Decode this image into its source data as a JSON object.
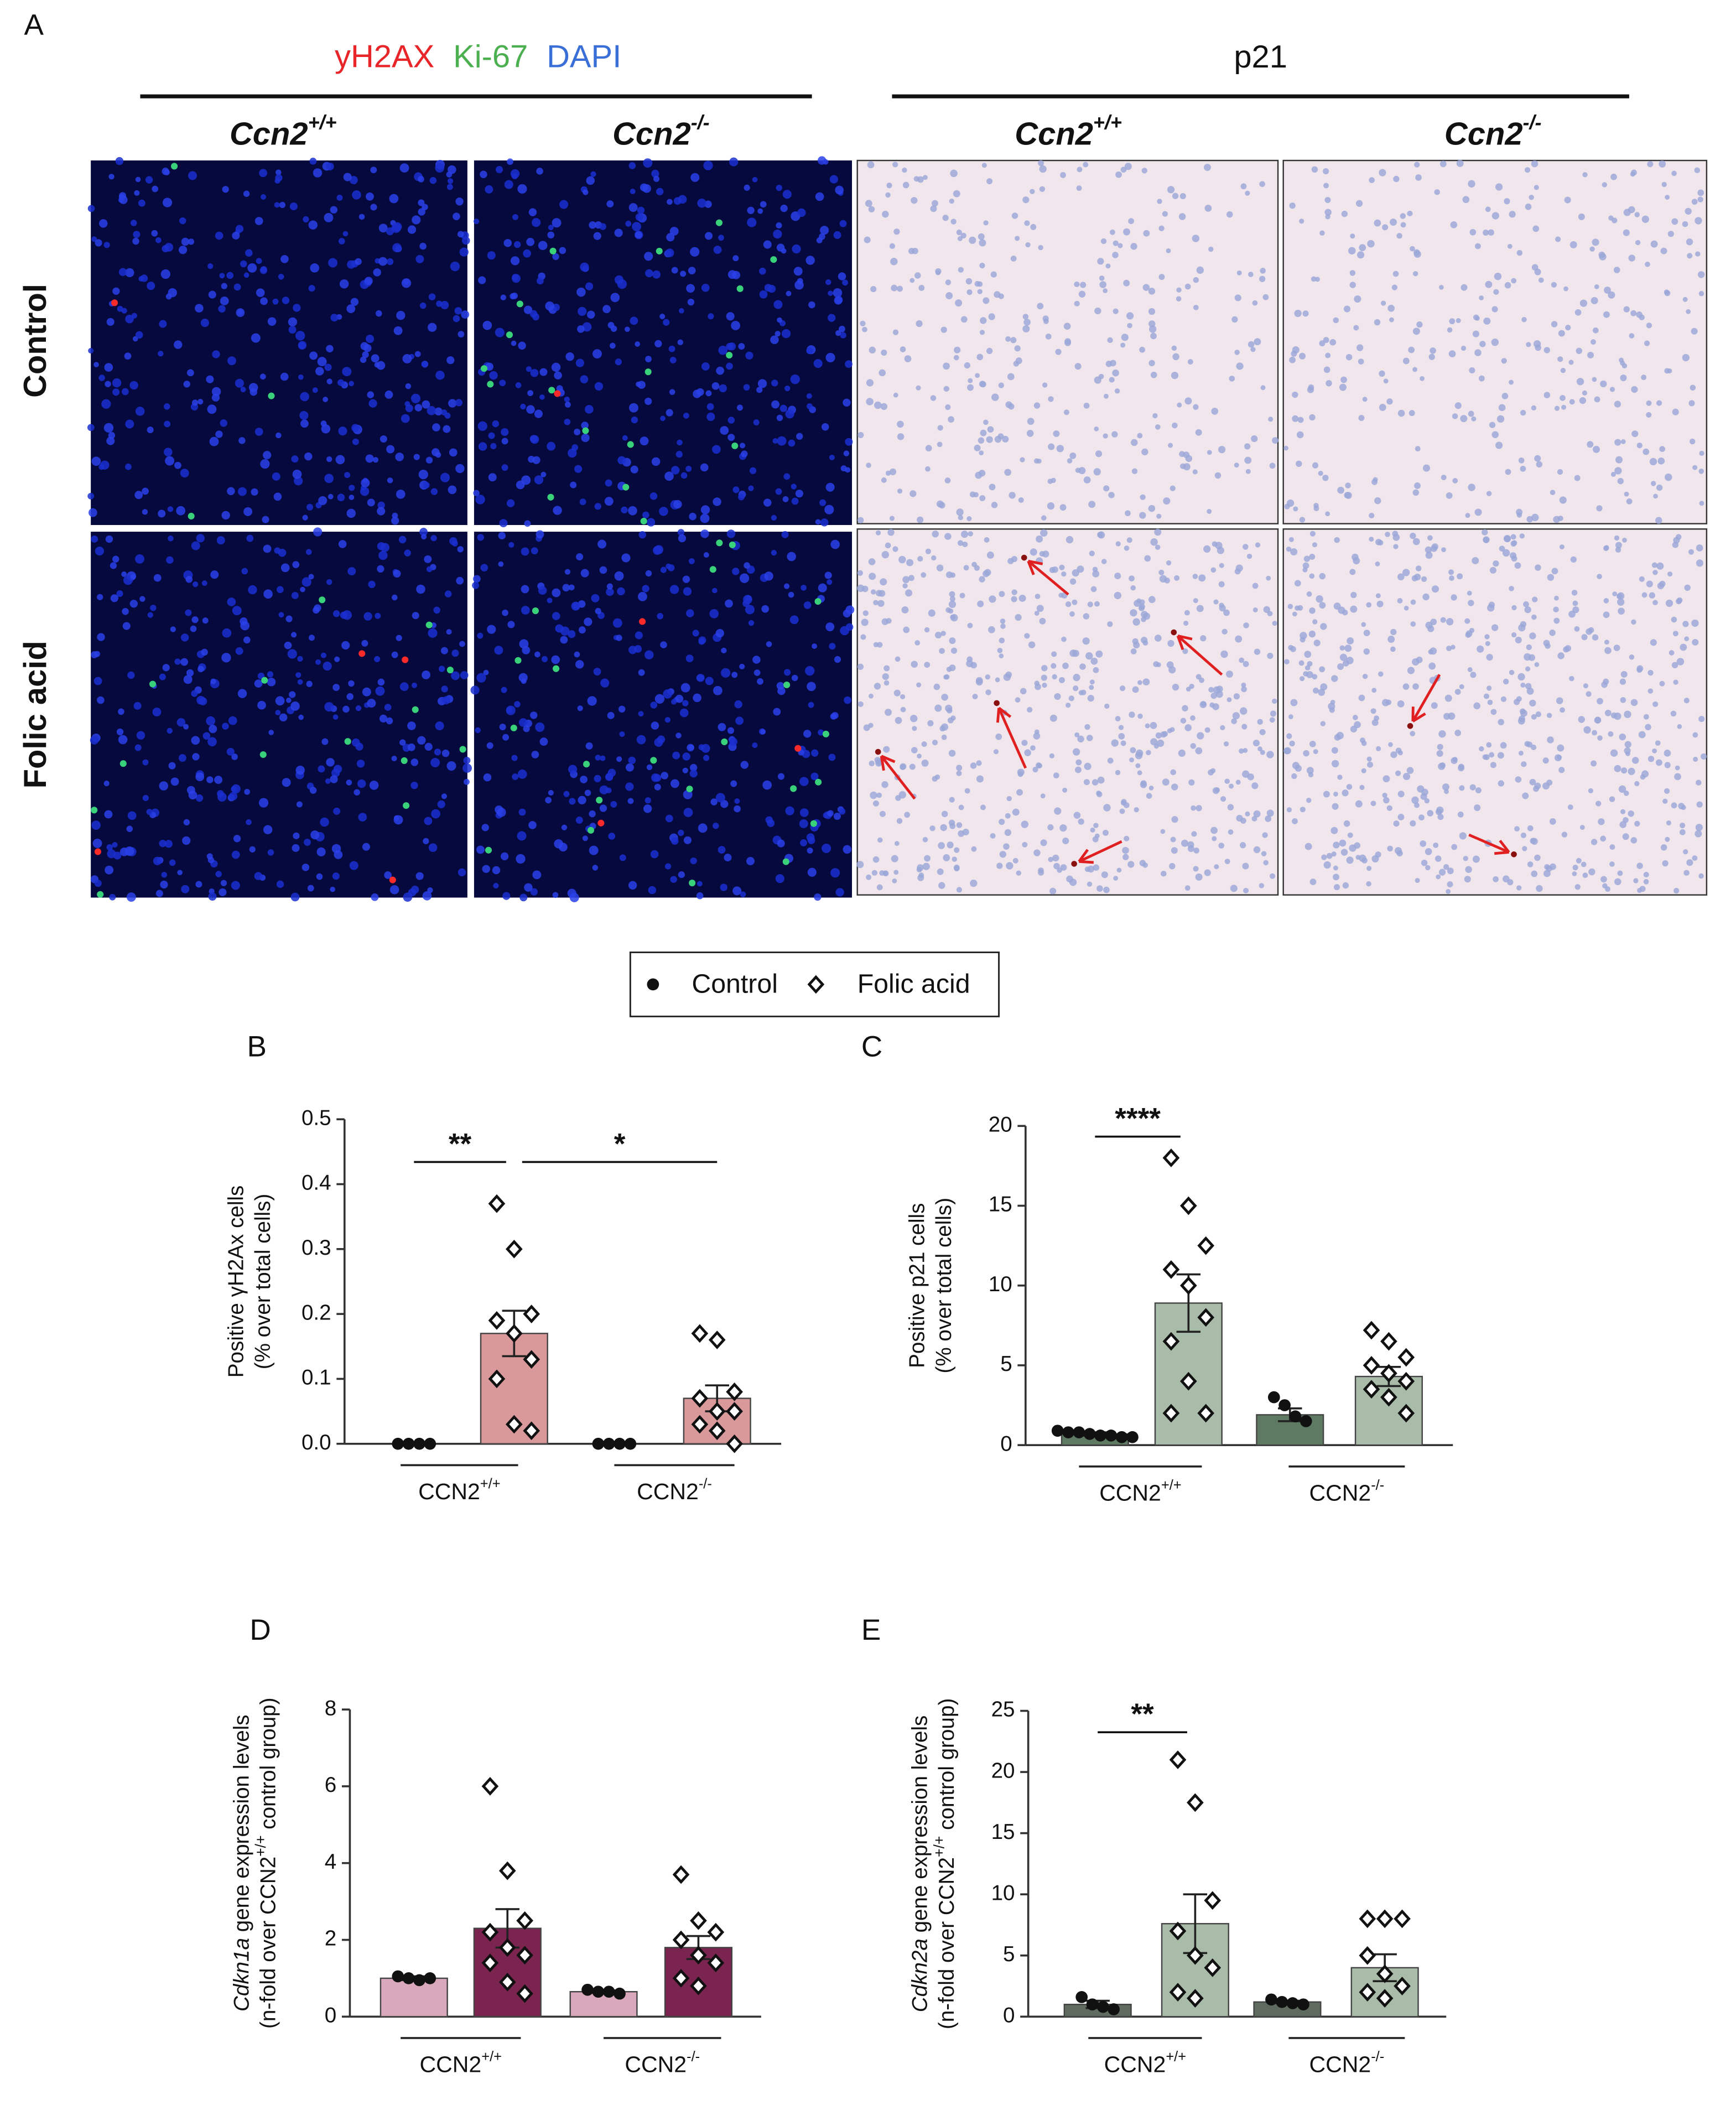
{
  "panel_a": {
    "panel": "A",
    "stains": [
      {
        "text": "yH2AX",
        "color": "#e8262a"
      },
      {
        "text": "Ki-67",
        "color": "#4caf50"
      },
      {
        "text": "DAPI",
        "color": "#3a6fd8"
      }
    ],
    "ihc_label": "p21",
    "columns": [
      {
        "base": "Ccn2",
        "sup": "+/+"
      },
      {
        "base": "Ccn2",
        "sup": "-/-"
      },
      {
        "base": "Ccn2",
        "sup": "+/+"
      },
      {
        "base": "Ccn2",
        "sup": "-/-"
      }
    ],
    "rows": [
      "Control",
      "Folic acid"
    ]
  },
  "legend": [
    {
      "name": "Control",
      "marker": "circle"
    },
    {
      "name": "Folic acid",
      "marker": "diamond"
    }
  ],
  "chart_data": [
    {
      "type": "bar",
      "panel": "B",
      "ylabel": [
        [
          {
            "text": "Positive γH2Ax cells"
          }
        ],
        [
          {
            "text": "(% over total cells)"
          }
        ]
      ],
      "ylim": [
        0,
        0.5
      ],
      "yticks": [
        {
          "value": 0,
          "label": "0.0"
        },
        0.1,
        0.2,
        0.3,
        0.4,
        0.5
      ],
      "categories": [
        {
          "base": "CCN2",
          "sup": "+/+"
        },
        {
          "base": "CCN2",
          "sup": "-/-"
        }
      ],
      "series": [
        {
          "marker": "circle",
          "color": "#d9999b",
          "values": [
            0,
            0
          ],
          "errors": [
            0,
            0
          ],
          "points": [
            [
              0,
              0,
              0,
              0
            ],
            [
              0,
              0,
              0,
              0
            ]
          ]
        },
        {
          "marker": "diamond",
          "color": "#d9999b",
          "values": [
            0.17,
            0.07
          ],
          "errors": [
            0.035,
            0.02
          ],
          "points": [
            [
              0.37,
              0.3,
              0.2,
              0.19,
              0.17,
              0.13,
              0.1,
              0.03,
              0.02
            ],
            [
              0.17,
              0.16,
              0.08,
              0.07,
              0.05,
              0.05,
              0.03,
              0.02,
              0.0
            ]
          ]
        }
      ],
      "significance": [
        {
          "label": "**",
          "bars": [
            [
              0,
              0
            ],
            [
              1,
              0
            ]
          ]
        },
        {
          "label": "*",
          "bars": [
            [
              1,
              0
            ],
            [
              1,
              1
            ]
          ]
        }
      ]
    },
    {
      "type": "bar",
      "panel": "C",
      "ylabel": [
        [
          {
            "text": "Positive p21 cells"
          }
        ],
        [
          {
            "text": "(% over total cells)"
          }
        ]
      ],
      "ylim": [
        0,
        20
      ],
      "yticks": [
        0,
        5,
        10,
        15,
        20
      ],
      "categories": [
        {
          "base": "CCN2",
          "sup": "+/+"
        },
        {
          "base": "CCN2",
          "sup": "-/-"
        }
      ],
      "series": [
        {
          "marker": "circle",
          "color": "#5f7a63",
          "values": [
            0.7,
            1.9
          ],
          "errors": [
            0.1,
            0.4
          ],
          "points": [
            [
              0.9,
              0.8,
              0.8,
              0.7,
              0.6,
              0.6,
              0.5,
              0.5
            ],
            [
              3,
              2.5,
              1.8,
              1.5
            ]
          ]
        },
        {
          "marker": "diamond",
          "color": "#a9bba9",
          "values": [
            8.9,
            4.3
          ],
          "errors": [
            1.8,
            0.6
          ],
          "points": [
            [
              18,
              15,
              12.5,
              11,
              10,
              8,
              6.5,
              4,
              2,
              2
            ],
            [
              7.2,
              6.5,
              5.5,
              5,
              4.5,
              4,
              3.5,
              3,
              2
            ]
          ]
        }
      ],
      "significance": [
        {
          "label": "****",
          "bars": [
            [
              0,
              0
            ],
            [
              1,
              0
            ]
          ]
        }
      ]
    },
    {
      "type": "bar",
      "panel": "D",
      "ylabel": [
        [
          {
            "text": "Cdkn1a",
            "italic": true
          },
          {
            "text": " gene expression levels"
          }
        ],
        [
          {
            "text": "(n-fold over CCN2"
          },
          {
            "text": "+/+",
            "sup": true
          },
          {
            "text": " control group)"
          }
        ]
      ],
      "ylim": [
        0,
        8
      ],
      "yticks": [
        0,
        2,
        4,
        6,
        8
      ],
      "categories": [
        {
          "base": "CCN2",
          "sup": "+/+"
        },
        {
          "base": "CCN2",
          "sup": "-/-"
        }
      ],
      "series": [
        {
          "marker": "circle",
          "color": "#d9a9bb",
          "values": [
            1.0,
            0.65
          ],
          "errors": [
            0.05,
            0.03
          ],
          "points": [
            [
              1.05,
              1.0,
              0.95,
              1.0
            ],
            [
              0.7,
              0.65,
              0.65,
              0.6
            ]
          ]
        },
        {
          "marker": "diamond",
          "color": "#7b2450",
          "values": [
            2.3,
            1.8
          ],
          "errors": [
            0.5,
            0.3
          ],
          "points": [
            [
              6,
              3.8,
              2.5,
              2.2,
              1.8,
              1.6,
              1.4,
              0.9,
              0.6
            ],
            [
              3.7,
              2.5,
              2.2,
              2.0,
              1.6,
              1.4,
              1.0,
              0.8
            ]
          ]
        }
      ],
      "significance": []
    },
    {
      "type": "bar",
      "panel": "E",
      "ylabel": [
        [
          {
            "text": "Cdkn2a",
            "italic": true
          },
          {
            "text": " gene expression levels"
          }
        ],
        [
          {
            "text": "(n-fold over CCN2"
          },
          {
            "text": "+/+",
            "sup": true
          },
          {
            "text": " control group)"
          }
        ]
      ],
      "ylim": [
        0,
        25
      ],
      "yticks": [
        0,
        5,
        10,
        15,
        20,
        25
      ],
      "categories": [
        {
          "base": "CCN2",
          "sup": "+/+"
        },
        {
          "base": "CCN2",
          "sup": "-/-"
        }
      ],
      "series": [
        {
          "marker": "circle",
          "color": "#5f6b5f",
          "values": [
            1.0,
            1.2
          ],
          "errors": [
            0.3,
            0.1
          ],
          "points": [
            [
              1.6,
              1.0,
              0.8,
              0.6
            ],
            [
              1.4,
              1.2,
              1.1,
              1.0
            ]
          ]
        },
        {
          "marker": "diamond",
          "color": "#a9bba9",
          "values": [
            7.6,
            4.0
          ],
          "errors": [
            2.4,
            1.1
          ],
          "points": [
            [
              21,
              17.5,
              9.5,
              7,
              5,
              4,
              2,
              1.5
            ],
            [
              8,
              8,
              8,
              5,
              3.5,
              2.5,
              2,
              1.5
            ]
          ]
        }
      ],
      "significance": [
        {
          "label": "**",
          "bars": [
            [
              0,
              0
            ],
            [
              1,
              0
            ]
          ]
        }
      ]
    }
  ]
}
